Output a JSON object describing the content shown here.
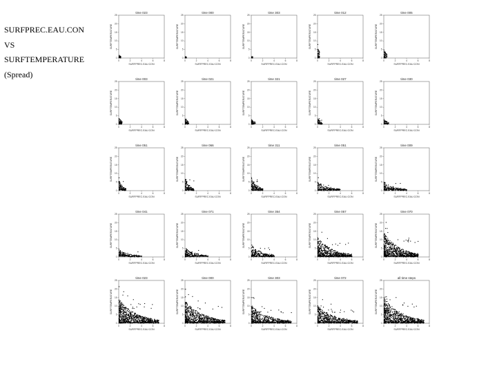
{
  "heading": {
    "line1": "SURFPREC.EAU.CON",
    "line2": "VS",
    "line3": "SURFTEMPERATURE",
    "line4": "(Spread)"
  },
  "colors": {
    "points": "#000000",
    "frame": "#555555"
  },
  "chart_data": {
    "type": "scatter",
    "layout": "5x5 small multiples",
    "xlabel": "SURFPREC.EAU.CON",
    "ylabel": "SURFTEMPERATURE",
    "x_ticks": [
      "0",
      "2",
      "4",
      "6",
      "8"
    ],
    "y_ticks": [
      "0",
      "5",
      "10",
      "15",
      "20",
      "25"
    ],
    "xlim": [
      0,
      8
    ],
    "ylim": [
      0,
      25
    ],
    "grid": false,
    "panels": [
      {
        "title": "time 023",
        "spread": [
          0.3,
          1
        ]
      },
      {
        "title": "time 000",
        "spread": [
          0.2,
          0.5
        ]
      },
      {
        "title": "time 303",
        "spread": [
          0.2,
          0.5
        ]
      },
      {
        "title": "time 012",
        "spread": [
          0.3,
          6
        ]
      },
      {
        "title": "time 005",
        "spread": [
          0.5,
          5
        ]
      },
      {
        "title": "time 003",
        "spread": [
          0.6,
          4
        ]
      },
      {
        "title": "time 021",
        "spread": [
          0.6,
          4
        ]
      },
      {
        "title": "time 321",
        "spread": [
          0.7,
          3
        ]
      },
      {
        "title": "time 027",
        "spread": [
          0.8,
          3
        ]
      },
      {
        "title": "time 030",
        "spread": [
          0.8,
          3
        ]
      },
      {
        "title": "time 051",
        "spread": [
          1.2,
          7
        ]
      },
      {
        "title": "time 066",
        "spread": [
          1.5,
          9
        ]
      },
      {
        "title": "time 311",
        "spread": [
          2,
          8
        ]
      },
      {
        "title": "time 051",
        "spread": [
          4,
          5
        ]
      },
      {
        "title": "time 009",
        "spread": [
          4,
          5
        ]
      },
      {
        "title": "time 041",
        "spread": [
          4,
          4
        ]
      },
      {
        "title": "time 071",
        "spread": [
          4,
          5
        ]
      },
      {
        "title": "time 354",
        "spread": [
          4,
          7
        ]
      },
      {
        "title": "time 057",
        "spread": [
          6,
          11
        ]
      },
      {
        "title": "time 070",
        "spread": [
          6,
          14
        ]
      },
      {
        "title": "time 023",
        "spread": [
          7,
          14
        ]
      },
      {
        "title": "time 000",
        "spread": [
          7,
          13
        ]
      },
      {
        "title": "time 303",
        "spread": [
          7,
          10
        ]
      },
      {
        "title": "time 072",
        "spread": [
          7,
          10
        ]
      },
      {
        "title": "all time steps",
        "spread": [
          7,
          15
        ]
      }
    ]
  }
}
